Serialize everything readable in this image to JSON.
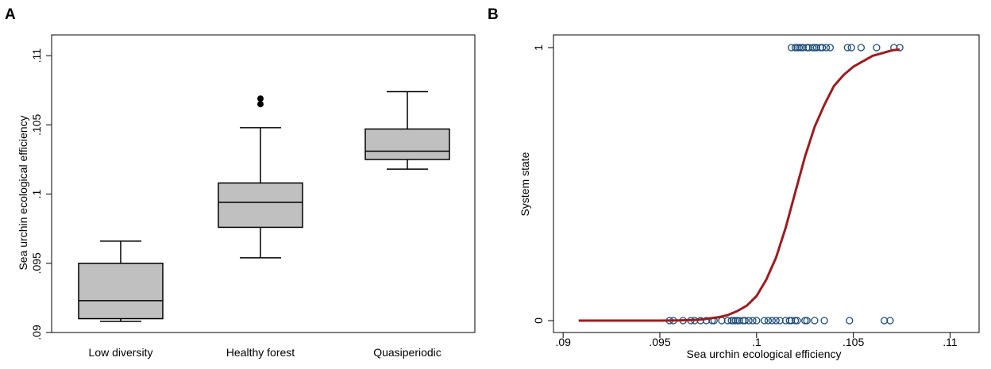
{
  "panels": {
    "a": "A",
    "b": "B"
  },
  "chart_data": [
    {
      "type": "box",
      "ylabel": "Sea urchin ecological efficiency",
      "xlabel": "",
      "ylim": [
        0.09,
        0.1115
      ],
      "yticks": [
        {
          "value": 0.09,
          "label": ".09"
        },
        {
          "value": 0.095,
          "label": ".095"
        },
        {
          "value": 0.1,
          "label": ".1"
        },
        {
          "value": 0.105,
          "label": ".105"
        },
        {
          "value": 0.11,
          "label": ".11"
        }
      ],
      "categories": [
        "Low diversity",
        "Healthy forest",
        "Quasiperiodic"
      ],
      "boxes": [
        {
          "whisker_low": 0.0908,
          "q1": 0.091,
          "median": 0.0923,
          "q3": 0.095,
          "whisker_high": 0.0966,
          "outliers": []
        },
        {
          "whisker_low": 0.0954,
          "q1": 0.0976,
          "median": 0.0994,
          "q3": 0.1008,
          "whisker_high": 0.1048,
          "outliers": [
            0.1065,
            0.1069
          ]
        },
        {
          "whisker_low": 0.1018,
          "q1": 0.1025,
          "median": 0.1031,
          "q3": 0.1047,
          "whisker_high": 0.1074,
          "outliers": []
        }
      ],
      "box_fill": "#c0c0c0",
      "grid": false
    },
    {
      "type": "scatter",
      "xlabel": "Sea urchin ecological efficiency",
      "ylabel": "System state",
      "xlim": [
        0.0895,
        0.1115
      ],
      "ylim": [
        0,
        1
      ],
      "xticks": [
        {
          "value": 0.09,
          "label": ".09"
        },
        {
          "value": 0.095,
          "label": ".095"
        },
        {
          "value": 0.1,
          "label": ".1"
        },
        {
          "value": 0.105,
          "label": ".105"
        },
        {
          "value": 0.11,
          "label": ".11"
        }
      ],
      "yticks": [
        {
          "value": 0,
          "label": "0"
        },
        {
          "value": 1,
          "label": "1"
        }
      ],
      "points_state0": [
        0.0955,
        0.0957,
        0.0962,
        0.0966,
        0.0968,
        0.0971,
        0.0974,
        0.0977,
        0.0978,
        0.0982,
        0.0985,
        0.0987,
        0.0988,
        0.0989,
        0.099,
        0.0991,
        0.0993,
        0.0994,
        0.0996,
        0.0998,
        0.1,
        0.1004,
        0.1006,
        0.1008,
        0.101,
        0.1012,
        0.1015,
        0.1017,
        0.1018,
        0.102,
        0.1021,
        0.1025,
        0.1026,
        0.103,
        0.1035,
        0.1048,
        0.1066,
        0.1069
      ],
      "points_state1": [
        0.1018,
        0.102,
        0.1021,
        0.1022,
        0.1023,
        0.1024,
        0.1026,
        0.1027,
        0.1029,
        0.103,
        0.1031,
        0.1033,
        0.1034,
        0.1036,
        0.1038,
        0.1047,
        0.1049,
        0.1054,
        0.1062,
        0.1071,
        0.1074
      ],
      "fit_curve": [
        [
          0.0908,
          0.0
        ],
        [
          0.092,
          0.0
        ],
        [
          0.094,
          0.0
        ],
        [
          0.095,
          0.0
        ],
        [
          0.096,
          0.001
        ],
        [
          0.097,
          0.003
        ],
        [
          0.098,
          0.012
        ],
        [
          0.0985,
          0.02
        ],
        [
          0.099,
          0.035
        ],
        [
          0.0995,
          0.055
        ],
        [
          0.1,
          0.09
        ],
        [
          0.1005,
          0.15
        ],
        [
          0.101,
          0.23
        ],
        [
          0.1015,
          0.34
        ],
        [
          0.102,
          0.47
        ],
        [
          0.1025,
          0.6
        ],
        [
          0.103,
          0.71
        ],
        [
          0.1035,
          0.79
        ],
        [
          0.104,
          0.86
        ],
        [
          0.1045,
          0.9
        ],
        [
          0.105,
          0.93
        ],
        [
          0.1055,
          0.95
        ],
        [
          0.106,
          0.97
        ],
        [
          0.1065,
          0.98
        ],
        [
          0.107,
          0.99
        ],
        [
          0.1074,
          0.993
        ]
      ],
      "marker_color": "#1f4e79",
      "curve_color": "#9b1d20",
      "grid": false
    }
  ]
}
